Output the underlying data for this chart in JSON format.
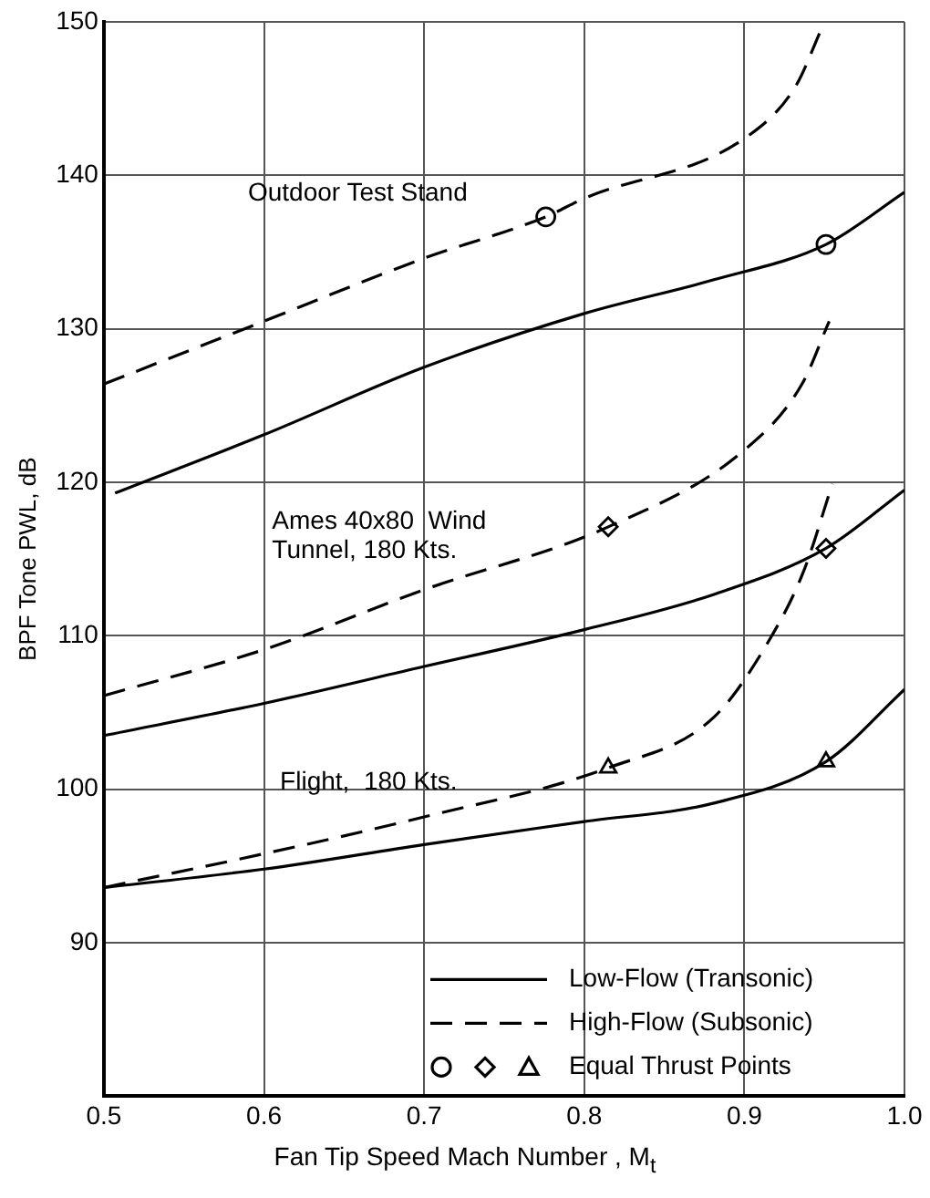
{
  "chart_data": {
    "type": "line",
    "xlabel": "Fan Tip Speed Mach Number ,  M$_{t}$",
    "ylabel": "BPF Tone PWL, dB",
    "xlim": [
      0.5,
      1.0
    ],
    "xticks": [
      0.5,
      0.6,
      0.7,
      0.8,
      0.9,
      {
        "value": 1.0,
        "label": "1.0"
      }
    ],
    "ylim": [
      80,
      150
    ],
    "yticks": [
      90,
      100,
      110,
      120,
      130,
      140,
      150
    ],
    "grid": true,
    "legend": "bottom right",
    "series": [
      {
        "name": "Low-Flow (Transonic)",
        "color": "#000000",
        "line_style": "solid",
        "x": [
          0.507,
          0.6,
          0.7,
          0.8,
          0.881,
          0.951,
          1.0
        ],
        "values": [
          119.3,
          123.1,
          127.5,
          131.0,
          133.2,
          135.5,
          138.9
        ]
      },
      {
        "name": "High-Flow (Subsonic)",
        "color": "#000000",
        "line_style": "dashed",
        "x": [
          0.5,
          0.6,
          0.7,
          0.776,
          0.8,
          0.9,
          0.932,
          0.948
        ],
        "values": [
          126.4,
          130.5,
          134.6,
          137.3,
          138.5,
          142.4,
          145.8,
          149.5
        ]
      },
      {
        "color": "#000000",
        "line_style": "solid",
        "x": [
          0.5,
          0.6,
          0.7,
          0.8,
          0.881,
          0.951,
          1.0
        ],
        "values": [
          103.5,
          105.6,
          108.0,
          110.4,
          112.7,
          115.7,
          119.5
        ]
      },
      {
        "color": "#000000",
        "line_style": "dashed",
        "x": [
          0.5,
          0.6,
          0.7,
          0.815,
          0.9,
          0.936,
          0.953
        ],
        "values": [
          106.1,
          109.1,
          113.0,
          117.1,
          122.1,
          126.4,
          130.5
        ]
      },
      {
        "color": "#000000",
        "line_style": "solid",
        "x": [
          0.5,
          0.6,
          0.7,
          0.8,
          0.881,
          0.951,
          1.0
        ],
        "values": [
          93.6,
          94.8,
          96.4,
          97.9,
          99.1,
          101.8,
          106.5
        ]
      },
      {
        "color": "#000000",
        "line_style": "dashed",
        "x": [
          0.5,
          0.6,
          0.7,
          0.815,
          0.881,
          0.916,
          0.937,
          0.955
        ],
        "values": [
          93.6,
          95.8,
          98.2,
          101.4,
          104.7,
          109.8,
          114.2,
          119.9
        ]
      },
      {
        "type": "scatter",
        "marker": "circle",
        "color": "#000000",
        "x": [
          0.776,
          0.951
        ],
        "values": [
          137.3,
          135.5
        ]
      },
      {
        "type": "scatter",
        "marker": "diamond",
        "color": "#000000",
        "x": [
          0.815,
          0.951
        ],
        "values": [
          117.1,
          115.7
        ]
      },
      {
        "type": "scatter",
        "marker": "triangle",
        "name": "Equal Thrust Points",
        "color": "#000000",
        "x": [
          0.815,
          0.951
        ],
        "values": [
          101.4,
          101.8
        ]
      }
    ],
    "annotations": [
      "Outdoor Test Stand",
      "Ames 40x80  Wind\nTunnel, 180 Kts.",
      "Flight,  180 Kts."
    ]
  }
}
